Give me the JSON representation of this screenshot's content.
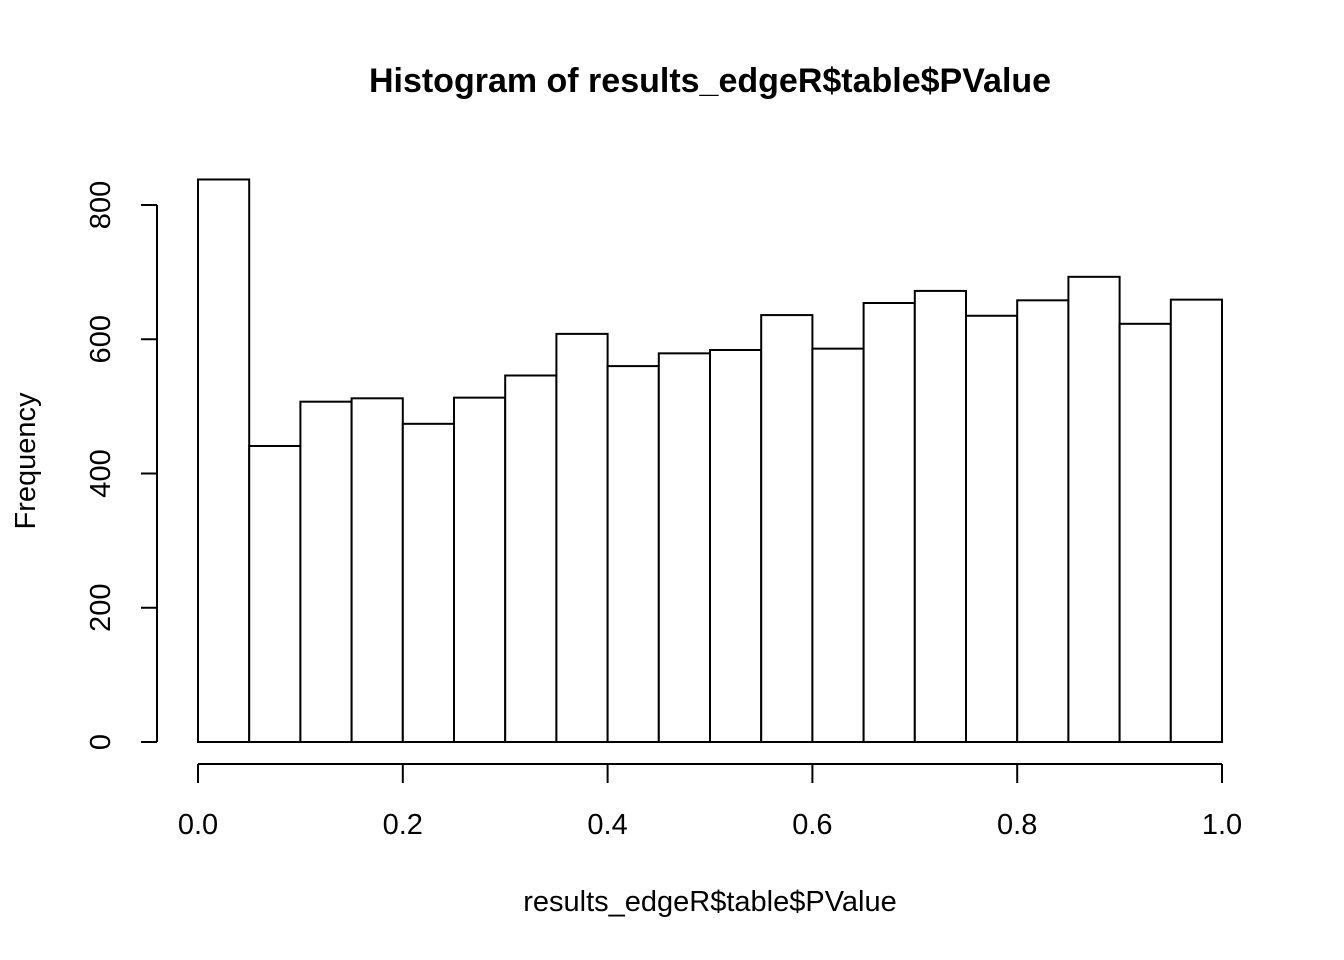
{
  "chart_data": {
    "type": "bar",
    "title": "Histogram of results_edgeR$table$PValue",
    "xlabel": "results_edgeR$table$PValue",
    "ylabel": "Frequency",
    "xlim": [
      0,
      1
    ],
    "ylim": [
      0,
      800
    ],
    "x_ticks": [
      0.0,
      0.2,
      0.4,
      0.6,
      0.8,
      1.0
    ],
    "x_tick_labels": [
      "0.0",
      "0.2",
      "0.4",
      "0.6",
      "0.8",
      "1.0"
    ],
    "y_ticks": [
      0,
      200,
      400,
      600,
      800
    ],
    "y_tick_labels": [
      "0",
      "200",
      "400",
      "600",
      "800"
    ],
    "bin_width": 0.05,
    "bins": [
      {
        "start": 0.0,
        "end": 0.05,
        "count": 838
      },
      {
        "start": 0.05,
        "end": 0.1,
        "count": 441
      },
      {
        "start": 0.1,
        "end": 0.15,
        "count": 507
      },
      {
        "start": 0.15,
        "end": 0.2,
        "count": 512
      },
      {
        "start": 0.2,
        "end": 0.25,
        "count": 474
      },
      {
        "start": 0.25,
        "end": 0.3,
        "count": 513
      },
      {
        "start": 0.3,
        "end": 0.35,
        "count": 546
      },
      {
        "start": 0.35,
        "end": 0.4,
        "count": 608
      },
      {
        "start": 0.4,
        "end": 0.45,
        "count": 560
      },
      {
        "start": 0.45,
        "end": 0.5,
        "count": 579
      },
      {
        "start": 0.5,
        "end": 0.55,
        "count": 584
      },
      {
        "start": 0.55,
        "end": 0.6,
        "count": 636
      },
      {
        "start": 0.6,
        "end": 0.65,
        "count": 586
      },
      {
        "start": 0.65,
        "end": 0.7,
        "count": 654
      },
      {
        "start": 0.7,
        "end": 0.75,
        "count": 672
      },
      {
        "start": 0.75,
        "end": 0.8,
        "count": 635
      },
      {
        "start": 0.8,
        "end": 0.85,
        "count": 658
      },
      {
        "start": 0.85,
        "end": 0.9,
        "count": 693
      },
      {
        "start": 0.9,
        "end": 0.95,
        "count": 623
      },
      {
        "start": 0.95,
        "end": 1.0,
        "count": 659
      }
    ],
    "grid": false,
    "legend": "none"
  }
}
